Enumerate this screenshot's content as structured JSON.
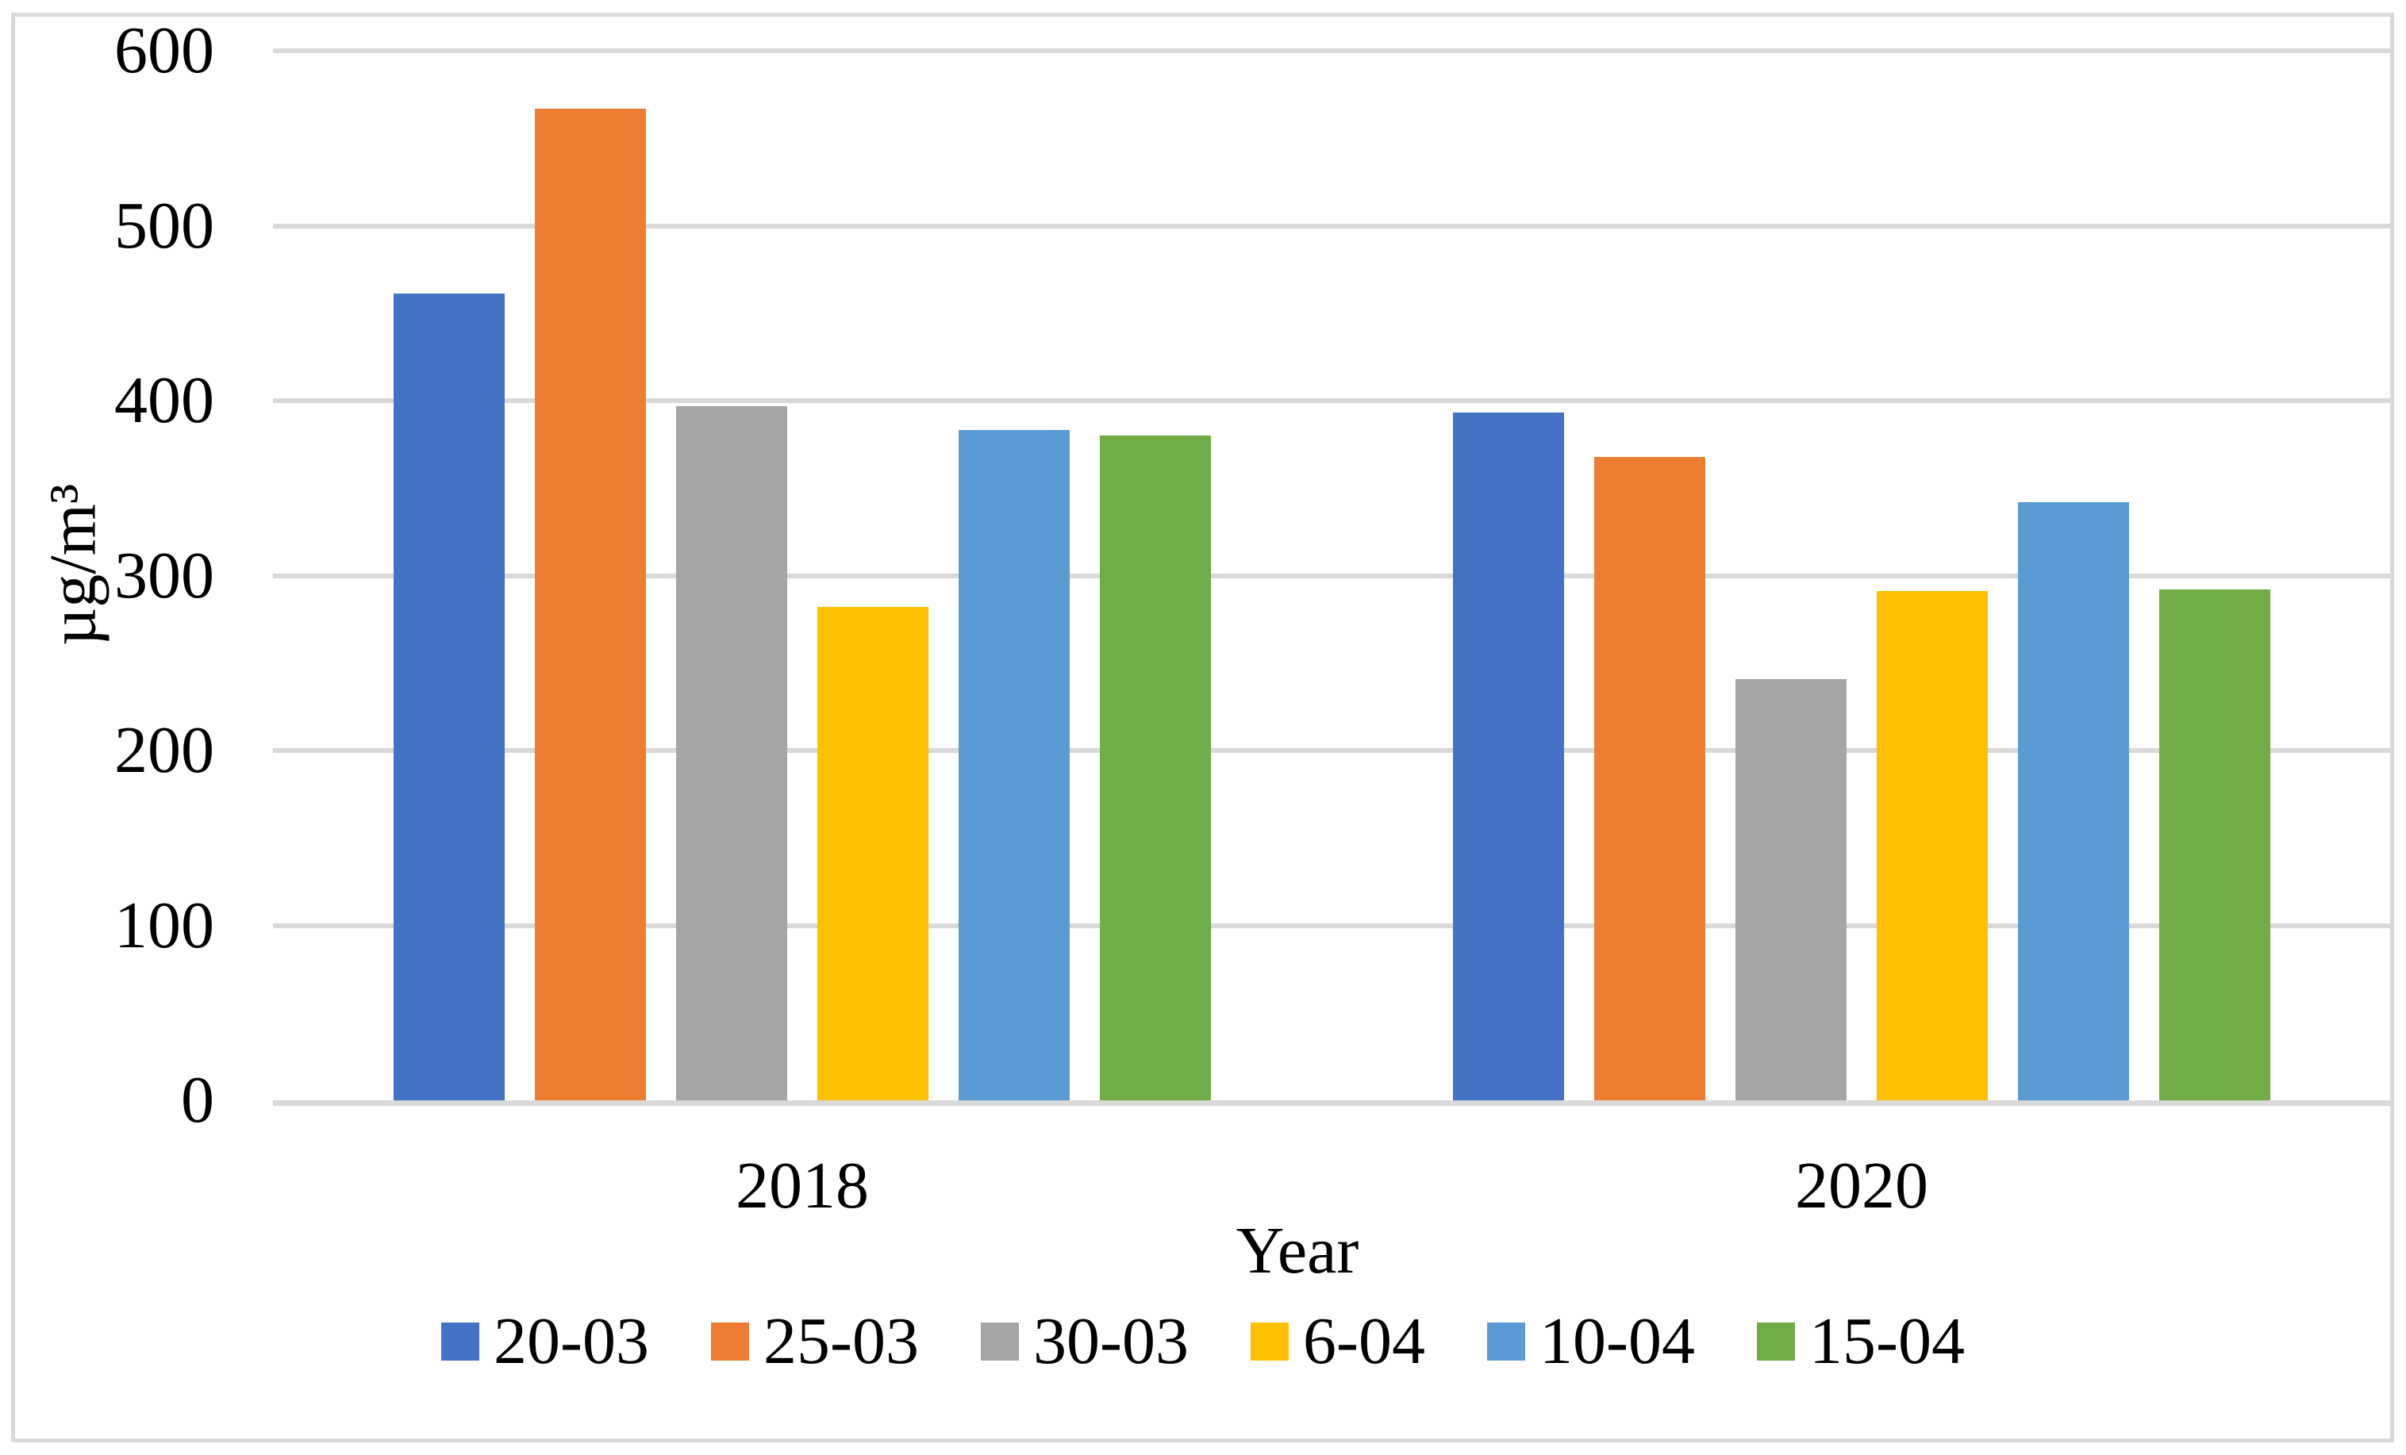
{
  "chart_data": {
    "type": "bar",
    "title": "",
    "categories": [
      "2018",
      "2020"
    ],
    "series": [
      {
        "name": "20-03",
        "color": "#4472C4",
        "values": [
          461,
          393
        ]
      },
      {
        "name": "25-03",
        "color": "#ED7D31",
        "values": [
          567,
          368
        ]
      },
      {
        "name": "30-03",
        "color": "#A5A5A5",
        "values": [
          397,
          241
        ]
      },
      {
        "name": "6-04",
        "color": "#FFC000",
        "values": [
          282,
          291
        ]
      },
      {
        "name": "10-04",
        "color": "#5B9BD5",
        "values": [
          383,
          342
        ]
      },
      {
        "name": "15-04",
        "color": "#70AD47",
        "values": [
          380,
          292
        ]
      }
    ],
    "xlabel": "Year",
    "ylabel": "µg/m³",
    "ylim": [
      0,
      600
    ],
    "ytick_step": 100,
    "yticks": [
      "0",
      "100",
      "200",
      "300",
      "400",
      "500",
      "600"
    ],
    "grid": true,
    "legend_position": "bottom",
    "colors": {
      "gridline": "#D9D9D9",
      "axis_line": "#D9D9D9",
      "frame_border": "#D9D9D9",
      "text": "#000000",
      "background": "#FFFFFF"
    }
  }
}
